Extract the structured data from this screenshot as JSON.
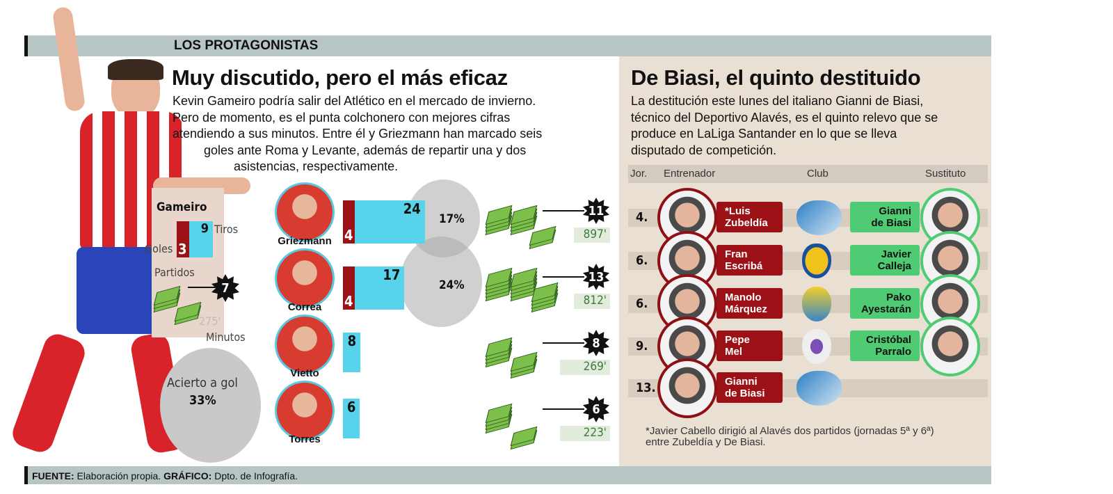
{
  "section_label": "LOS PROTAGONISTAS",
  "left": {
    "title": "Muy discutido, pero el más eficaz",
    "paragraph": [
      "Kevin Gameiro podría salir del Atlético en el mercado de invierno.",
      "Pero de momento, es el punta colchonero con mejores cifras",
      "atendiendo a sus minutos. Entre él y Griezmann han marcado seis",
      "goles ante Roma y Levante, además de repartir una y dos",
      "asistencias, respectivamente."
    ],
    "gameiro": {
      "name": "Gameiro",
      "goles_label": "Goles",
      "goles": "3",
      "tiros_label": "Tiros",
      "tiros": "9",
      "partidos_label": "Partidos",
      "partidos": "7",
      "minutos": "275'",
      "minutos_label": "Minutos",
      "acierto_label": "Acierto a gol",
      "acierto": "33%"
    },
    "players": [
      {
        "name": "Griezmann",
        "goles": "4",
        "tiros": "24",
        "partidos": "11",
        "minutos": "897'"
      },
      {
        "name": "Correa",
        "goles": "4",
        "tiros": "17",
        "partidos": "13",
        "minutos": "812'"
      },
      {
        "name": "Vietto",
        "goles": "",
        "tiros": "8",
        "partidos": "8",
        "minutos": "269'"
      },
      {
        "name": "Torres",
        "goles": "",
        "tiros": "6",
        "partidos": "6",
        "minutos": "223'"
      }
    ],
    "acierto": [
      "17%",
      "24%"
    ]
  },
  "right": {
    "title": "De Biasi, el quinto destituido",
    "paragraph": [
      "La destitución este lunes del italiano Gianni de Biasi,",
      "técnico del Deportivo Alavés, es el quinto relevo que se",
      "produce en LaLiga Santander en lo que se lleva",
      "disputado de competición."
    ],
    "headers": {
      "jor": "Jor.",
      "entrenador": "Entrenador",
      "club": "Club",
      "sustituto": "Sustituto"
    },
    "rows": [
      {
        "jor": "4.",
        "coach": [
          "*Luis",
          "Zubeldía"
        ],
        "club": "alaves-crest",
        "sub": [
          "Gianni",
          "de Biasi"
        ]
      },
      {
        "jor": "6.",
        "coach": [
          "Fran",
          "Escribá"
        ],
        "club": "villarreal-crest",
        "sub": [
          "Javier",
          "Calleja"
        ]
      },
      {
        "jor": "6.",
        "coach": [
          "Manolo",
          "Márquez"
        ],
        "club": "las-palmas-crest",
        "sub": [
          "Pako",
          "Ayestarán"
        ]
      },
      {
        "jor": "9.",
        "coach": [
          "Pepe",
          "Mel"
        ],
        "club": "deportivo-crest",
        "sub": [
          "Cristóbal",
          "Parralo"
        ]
      },
      {
        "jor": "13.",
        "coach": [
          "Gianni",
          "de Biasi"
        ],
        "club": "alaves-crest",
        "sub": null
      }
    ],
    "note": [
      "*Javier Cabello dirigió al Alavés dos partidos (jornadas 5ª y 6ª)",
      "entre Zubeldía y De Biasi."
    ]
  },
  "footer": {
    "fuente_label": "FUENTE:",
    "fuente": " Elaboración propia. ",
    "grafico_label": "GRÁFICO:",
    "grafico": " Dpto. de Infografía."
  },
  "colors": {
    "goles": "#9b1116",
    "tiros": "#58d3ec",
    "coach": "#9b1116",
    "sustituto": "#4fcc73",
    "band": "#b7c6c5",
    "panel": "#e9e0d3"
  }
}
